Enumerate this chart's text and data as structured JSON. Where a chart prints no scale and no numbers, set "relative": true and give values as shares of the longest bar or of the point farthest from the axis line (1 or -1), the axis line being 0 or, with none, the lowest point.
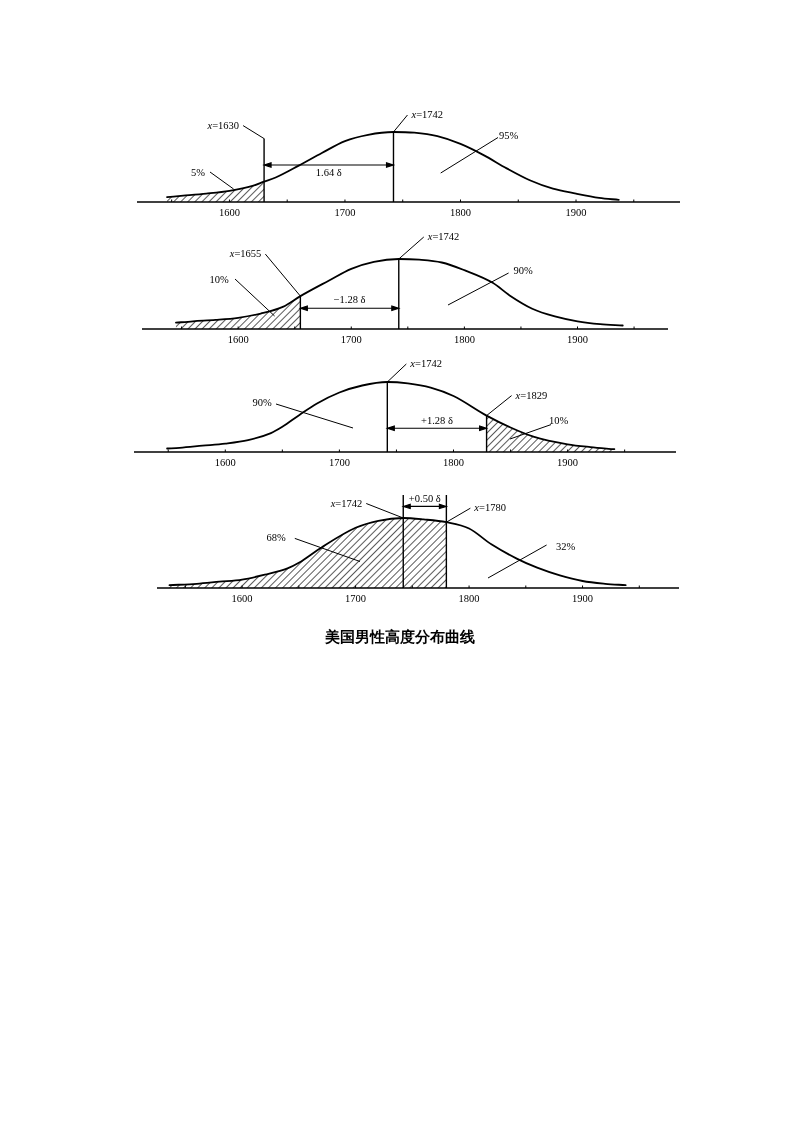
{
  "chart_data": [
    {
      "type": "line",
      "relative": true,
      "xlim": [
        1520,
        1990
      ],
      "xticks": [
        {
          "value": 1550,
          "label": null
        },
        1600,
        {
          "value": 1650,
          "label": null
        },
        1700,
        {
          "value": 1750,
          "label": null
        },
        1800,
        {
          "value": 1850,
          "label": null
        },
        1900,
        {
          "value": 1950,
          "label": null
        }
      ],
      "series": [
        {
          "color": "#000000",
          "x": [
            1546,
            1560,
            1580,
            1600,
            1620,
            1630,
            1640,
            1660,
            1680,
            1700,
            1720,
            1742,
            1760,
            1780,
            1800,
            1820,
            1840,
            1860,
            1880,
            1900,
            1920,
            1937
          ],
          "values": [
            0.07,
            0.09,
            0.12,
            0.16,
            0.23,
            0.29,
            0.35,
            0.52,
            0.7,
            0.87,
            0.96,
            1.0,
            0.99,
            0.94,
            0.83,
            0.67,
            0.48,
            0.31,
            0.19,
            0.12,
            0.06,
            0.03
          ]
        },
        {
          "type": "area",
          "color": "#000000",
          "x": [
            1546,
            1560,
            1580,
            1600,
            1620,
            1630
          ],
          "values": [
            0.07,
            0.09,
            0.12,
            0.16,
            0.23,
            0.29
          ]
        }
      ],
      "ref_lines": [
        {
          "axis": "x",
          "value": 1630,
          "label": "*x*=1630"
        },
        {
          "axis": "x",
          "value": 1742,
          "label": "*x*=1742"
        }
      ],
      "annotations": [
        "1.64 δ",
        "5%",
        "95%"
      ]
    },
    {
      "type": "line",
      "relative": true,
      "xlim": [
        1515,
        1980
      ],
      "xticks": [
        {
          "value": 1550,
          "label": null
        },
        1600,
        {
          "value": 1650,
          "label": null
        },
        1700,
        {
          "value": 1750,
          "label": null
        },
        1800,
        {
          "value": 1850,
          "label": null
        },
        1900,
        {
          "value": 1950,
          "label": null
        }
      ],
      "series": [
        {
          "color": "#000000",
          "x": [
            1545,
            1560,
            1580,
            1600,
            1620,
            1640,
            1655,
            1680,
            1700,
            1720,
            1742,
            1760,
            1780,
            1800,
            1825,
            1840,
            1860,
            1880,
            1900,
            1920,
            1940
          ],
          "values": [
            0.09,
            0.11,
            0.13,
            0.16,
            0.22,
            0.32,
            0.47,
            0.69,
            0.86,
            0.96,
            1.0,
            0.99,
            0.95,
            0.84,
            0.66,
            0.48,
            0.29,
            0.18,
            0.11,
            0.07,
            0.05
          ]
        },
        {
          "type": "area",
          "color": "#000000",
          "x": [
            1545,
            1560,
            1580,
            1600,
            1620,
            1640,
            1655
          ],
          "values": [
            0.09,
            0.11,
            0.13,
            0.16,
            0.22,
            0.32,
            0.47
          ]
        }
      ],
      "ref_lines": [
        {
          "axis": "x",
          "value": 1655,
          "label": "*x*=1655"
        },
        {
          "axis": "x",
          "value": 1742,
          "label": "*x*=1742"
        }
      ],
      "annotations": [
        "−1.28 δ",
        "10%",
        "90%"
      ]
    },
    {
      "type": "line",
      "relative": true,
      "xlim": [
        1520,
        1995
      ],
      "xticks": [
        {
          "value": 1550,
          "label": null
        },
        1600,
        {
          "value": 1650,
          "label": null
        },
        1700,
        {
          "value": 1750,
          "label": null
        },
        1800,
        {
          "value": 1850,
          "label": null
        },
        1900,
        {
          "value": 1950,
          "label": null
        }
      ],
      "series": [
        {
          "color": "#000000",
          "x": [
            1549,
            1560,
            1580,
            1600,
            1620,
            1640,
            1650,
            1665,
            1680,
            1700,
            1720,
            1742,
            1760,
            1780,
            1800,
            1829,
            1850,
            1870,
            1900,
            1920,
            1941
          ],
          "values": [
            0.05,
            0.06,
            0.09,
            0.12,
            0.17,
            0.27,
            0.36,
            0.53,
            0.69,
            0.85,
            0.95,
            1.0,
            0.98,
            0.92,
            0.8,
            0.52,
            0.35,
            0.22,
            0.11,
            0.07,
            0.04
          ]
        },
        {
          "type": "area",
          "color": "#000000",
          "x": [
            1829,
            1850,
            1870,
            1900,
            1920,
            1941
          ],
          "values": [
            0.52,
            0.35,
            0.22,
            0.11,
            0.07,
            0.04
          ]
        }
      ],
      "ref_lines": [
        {
          "axis": "x",
          "value": 1742,
          "label": "*x*=1742"
        },
        {
          "axis": "x",
          "value": 1829,
          "label": "*x*=1829"
        }
      ],
      "annotations": [
        "+1.28 δ",
        "90%",
        "10%"
      ]
    },
    {
      "type": "line",
      "relative": true,
      "xlim": [
        1525,
        1985
      ],
      "xticks": [
        {
          "value": 1550,
          "label": null
        },
        1600,
        {
          "value": 1650,
          "label": null
        },
        1700,
        {
          "value": 1750,
          "label": null
        },
        1800,
        {
          "value": 1850,
          "label": null
        },
        1900,
        {
          "value": 1950,
          "label": null
        }
      ],
      "series": [
        {
          "color": "#000000",
          "x": [
            1536,
            1560,
            1580,
            1600,
            1620,
            1640,
            1650,
            1670,
            1700,
            1720,
            1742,
            1760,
            1780,
            1800,
            1820,
            1842,
            1860,
            1880,
            1900,
            1920,
            1938
          ],
          "values": [
            0.04,
            0.06,
            0.09,
            0.12,
            0.19,
            0.28,
            0.36,
            0.58,
            0.86,
            0.96,
            1.0,
            0.98,
            0.94,
            0.85,
            0.62,
            0.42,
            0.29,
            0.18,
            0.1,
            0.06,
            0.04
          ]
        },
        {
          "type": "area",
          "color": "#000000",
          "x": [
            1536,
            1560,
            1580,
            1600,
            1620,
            1640,
            1650,
            1670,
            1700,
            1720,
            1742,
            1760,
            1780
          ],
          "values": [
            0.04,
            0.06,
            0.09,
            0.12,
            0.19,
            0.28,
            0.36,
            0.58,
            0.86,
            0.96,
            1.0,
            0.98,
            0.94
          ]
        }
      ],
      "ref_lines": [
        {
          "axis": "x",
          "value": 1742,
          "label": "*x*=1742"
        },
        {
          "axis": "x",
          "value": 1780,
          "label": "*x*=1780"
        }
      ],
      "annotations": [
        "+0.50 δ",
        "68%",
        "32%",
        "美国男性高度分布曲线"
      ]
    }
  ]
}
